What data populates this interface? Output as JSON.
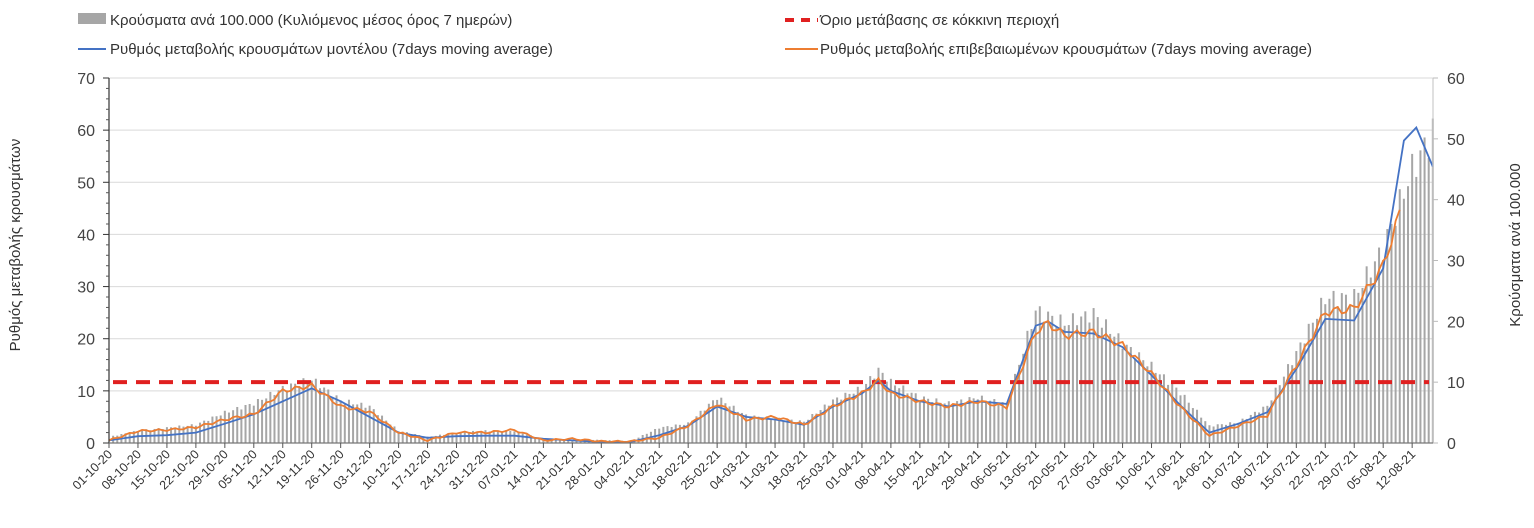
{
  "chart_data": {
    "type": "bar+line",
    "x_unit": "days since 01-10-20",
    "xlim": [
      0,
      320
    ],
    "legend": {
      "bars": "Κρούσματα ανά 100.000 (Κυλιόμενος μέσος όρος 7 ημερών)",
      "threshold": "Όριο μετάβασης σε κόκκινη περιοχή",
      "model": "Ρυθμός μεταβολής κρουσμάτων μοντέλου (7days moving average)",
      "confirmed": "Ρυθμός μεταβολής επιβεβαιωμένων κρουσμάτων (7days moving average)"
    },
    "ylabel_left": "Ρυθμός μεταβολής κρουσμάτων",
    "ylabel_right": "Κρούσματα ανά 100.000",
    "ylim_left": [
      0,
      70
    ],
    "ylim_right": [
      0,
      60
    ],
    "yticks_left": [
      "0",
      "10",
      "20",
      "30",
      "40",
      "50",
      "60",
      "70"
    ],
    "yticks_right": [
      "0",
      "10",
      "20",
      "30",
      "40",
      "50",
      "60"
    ],
    "xticks": [
      "01-10-20",
      "08-10-20",
      "15-10-20",
      "22-10-20",
      "29-10-20",
      "05-11-20",
      "12-11-20",
      "19-11-20",
      "26-11-20",
      "03-12-20",
      "10-12-20",
      "17-12-20",
      "24-12-20",
      "31-12-20",
      "07-01-21",
      "14-01-21",
      "21-01-21",
      "28-01-21",
      "04-02-21",
      "11-02-21",
      "18-02-21",
      "25-02-21",
      "04-03-21",
      "11-03-21",
      "18-03-21",
      "25-03-21",
      "01-04-21",
      "08-04-21",
      "15-04-21",
      "22-04-21",
      "29-04-21",
      "06-05-21",
      "13-05-21",
      "20-05-21",
      "27-05-21",
      "03-06-21",
      "10-06-21",
      "17-06-21",
      "24-06-21",
      "01-07-21",
      "08-07-21",
      "15-07-21",
      "22-07-21",
      "29-07-21",
      "05-08-21",
      "12-08-21"
    ],
    "threshold_right_axis": 10,
    "colors": {
      "bars": "#a6a6a6",
      "threshold": "#e02020",
      "model": "#4472c4",
      "confirmed": "#ed7d31"
    },
    "bars_right_axis": [
      [
        0,
        1
      ],
      [
        7,
        2
      ],
      [
        14,
        2.5
      ],
      [
        21,
        3
      ],
      [
        28,
        5
      ],
      [
        35,
        6.5
      ],
      [
        42,
        9
      ],
      [
        49,
        10.5
      ],
      [
        56,
        7
      ],
      [
        63,
        6
      ],
      [
        70,
        2
      ],
      [
        77,
        1
      ],
      [
        84,
        1.7
      ],
      [
        91,
        2
      ],
      [
        98,
        2
      ],
      [
        105,
        0.6
      ],
      [
        112,
        0.6
      ],
      [
        119,
        0.5
      ],
      [
        126,
        0.3
      ],
      [
        133,
        2.5
      ],
      [
        140,
        3.2
      ],
      [
        147,
        7.5
      ],
      [
        154,
        4.5
      ],
      [
        161,
        4
      ],
      [
        168,
        3.5
      ],
      [
        175,
        7
      ],
      [
        182,
        9
      ],
      [
        186,
        12
      ],
      [
        189,
        10
      ],
      [
        196,
        7.5
      ],
      [
        203,
        6.5
      ],
      [
        210,
        7.5
      ],
      [
        217,
        6.4
      ],
      [
        224,
        21.8
      ],
      [
        231,
        19.7
      ],
      [
        238,
        21.3
      ],
      [
        245,
        16.4
      ],
      [
        252,
        12.6
      ],
      [
        259,
        8.3
      ],
      [
        266,
        2.8
      ],
      [
        273,
        3.4
      ],
      [
        280,
        6.1
      ],
      [
        287,
        14.8
      ],
      [
        294,
        23.8
      ],
      [
        301,
        24
      ],
      [
        308,
        32
      ],
      [
        315,
        45
      ],
      [
        320,
        51
      ]
    ],
    "model_left_axis": [
      [
        0,
        0.5
      ],
      [
        7,
        1.3
      ],
      [
        14,
        1.5
      ],
      [
        21,
        2
      ],
      [
        28,
        3.7
      ],
      [
        35,
        5.5
      ],
      [
        42,
        8
      ],
      [
        49,
        10.5
      ],
      [
        56,
        8
      ],
      [
        63,
        5
      ],
      [
        70,
        2
      ],
      [
        77,
        1
      ],
      [
        84,
        1.3
      ],
      [
        91,
        1.4
      ],
      [
        98,
        1.4
      ],
      [
        105,
        0.8
      ],
      [
        112,
        0.5
      ],
      [
        119,
        0.2
      ],
      [
        126,
        0.2
      ],
      [
        133,
        1.5
      ],
      [
        140,
        3.3
      ],
      [
        147,
        7
      ],
      [
        154,
        5
      ],
      [
        161,
        4.5
      ],
      [
        168,
        3.5
      ],
      [
        175,
        7
      ],
      [
        182,
        9.5
      ],
      [
        186,
        12
      ],
      [
        189,
        10
      ],
      [
        196,
        8
      ],
      [
        203,
        7
      ],
      [
        210,
        8
      ],
      [
        217,
        7.5
      ],
      [
        224,
        22.5
      ],
      [
        227,
        23.3
      ],
      [
        231,
        21.3
      ],
      [
        238,
        21
      ],
      [
        245,
        18.4
      ],
      [
        252,
        13
      ],
      [
        259,
        7.2
      ],
      [
        266,
        2
      ],
      [
        273,
        3.7
      ],
      [
        280,
        5.9
      ],
      [
        287,
        14.2
      ],
      [
        294,
        23.8
      ],
      [
        301,
        23.5
      ],
      [
        308,
        33.5
      ],
      [
        313,
        58
      ],
      [
        316,
        60.5
      ],
      [
        320,
        53
      ]
    ],
    "confirmed_left_axis": [
      [
        0,
        0.5
      ],
      [
        7,
        2.3
      ],
      [
        14,
        2.5
      ],
      [
        21,
        3
      ],
      [
        28,
        4.5
      ],
      [
        35,
        5.5
      ],
      [
        42,
        10
      ],
      [
        49,
        11
      ],
      [
        56,
        7
      ],
      [
        63,
        6
      ],
      [
        70,
        2
      ],
      [
        77,
        0.5
      ],
      [
        84,
        2
      ],
      [
        91,
        2
      ],
      [
        98,
        2.5
      ],
      [
        105,
        0.5
      ],
      [
        112,
        0.8
      ],
      [
        119,
        0.3
      ],
      [
        126,
        0.3
      ],
      [
        133,
        1
      ],
      [
        140,
        3.3
      ],
      [
        147,
        7.5
      ],
      [
        154,
        4.5
      ],
      [
        161,
        5
      ],
      [
        168,
        3.5
      ],
      [
        175,
        7
      ],
      [
        182,
        9.5
      ],
      [
        186,
        12
      ],
      [
        189,
        9.5
      ],
      [
        196,
        8
      ],
      [
        203,
        7
      ],
      [
        210,
        8
      ],
      [
        217,
        6.9
      ],
      [
        224,
        21.3
      ],
      [
        227,
        23
      ],
      [
        231,
        20.6
      ],
      [
        238,
        21.3
      ],
      [
        245,
        18.7
      ],
      [
        252,
        13.3
      ],
      [
        259,
        6.9
      ],
      [
        266,
        1.4
      ],
      [
        273,
        3.3
      ],
      [
        280,
        5.3
      ],
      [
        287,
        14.9
      ],
      [
        294,
        25.1
      ],
      [
        301,
        25.8
      ],
      [
        308,
        34
      ],
      [
        312,
        44
      ]
    ]
  }
}
